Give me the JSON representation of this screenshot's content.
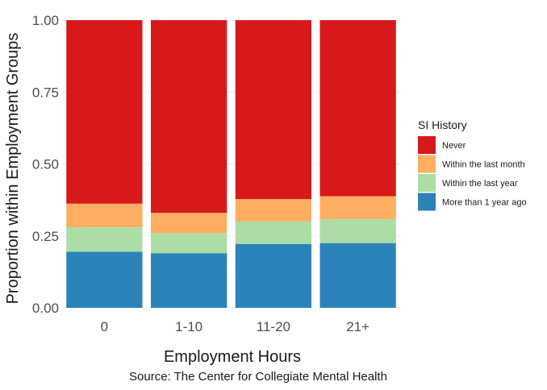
{
  "chart_data": {
    "type": "bar",
    "stacked": true,
    "categories": [
      "0",
      "1-10",
      "11-20",
      "21+"
    ],
    "series": [
      {
        "name": "More than 1 year ago",
        "color": "#2b83ba",
        "values": [
          0.195,
          0.19,
          0.222,
          0.225
        ]
      },
      {
        "name": "Within the last year",
        "color": "#abdda4",
        "values": [
          0.085,
          0.07,
          0.078,
          0.083
        ]
      },
      {
        "name": "Within the last month",
        "color": "#fdae61",
        "values": [
          0.082,
          0.07,
          0.078,
          0.08
        ]
      },
      {
        "name": "Never",
        "color": "#d7191c",
        "values": [
          0.638,
          0.67,
          0.622,
          0.612
        ]
      }
    ],
    "xlabel": "Employment Hours",
    "ylabel": "Proportion within Employment Groups",
    "ylim": [
      0,
      1
    ],
    "yticks": [
      "0.00",
      "0.25",
      "0.50",
      "0.75",
      "1.00"
    ],
    "legend_title": "SI History",
    "legend_order": [
      "Never",
      "Within the last month",
      "Within the last year",
      "More than 1 year ago"
    ],
    "legend_position": "right",
    "grid": true,
    "caption": "Source: The Center for Collegiate Mental Health"
  }
}
